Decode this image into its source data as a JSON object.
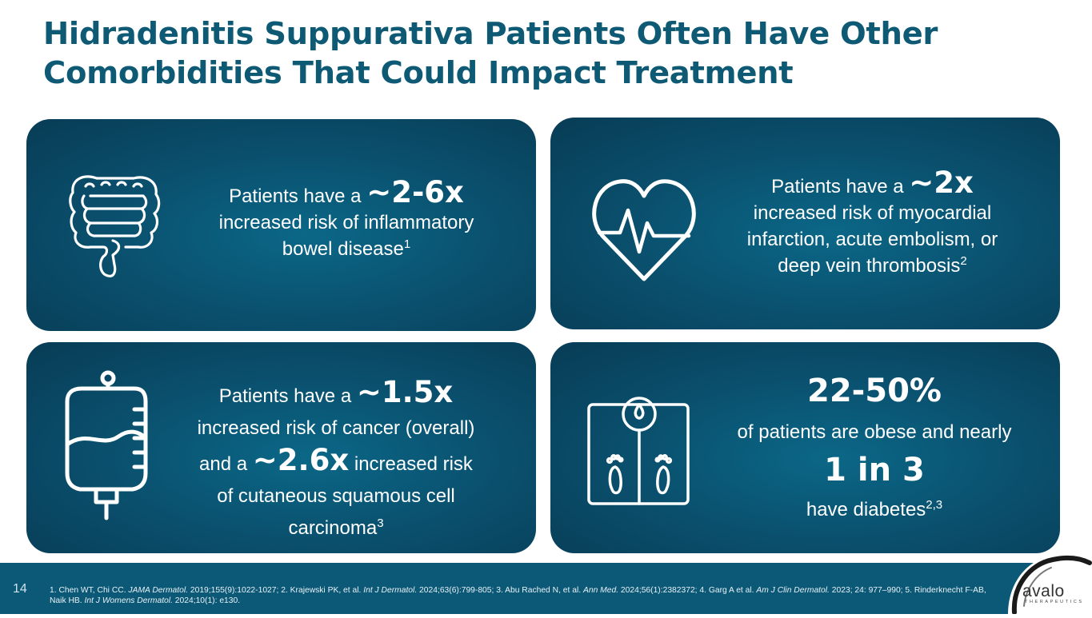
{
  "title": {
    "line1": "Hidradenitis Suppurativa Patients Often Have Other",
    "line2": "Comorbidities That Could Impact Treatment"
  },
  "cards": {
    "ibd": {
      "icon": "intestine-icon",
      "prefix": "Patients have a",
      "stat": "~2-6x",
      "line2": "increased risk of inflammatory",
      "line3": "bowel disease",
      "ref": "1"
    },
    "cardio": {
      "icon": "heart-pulse-icon",
      "prefix": "Patients have a",
      "stat": "~2x",
      "line2": "increased risk of myocardial",
      "line3": "infarction, acute embolism, or",
      "line4": "deep vein thrombosis",
      "ref": "2"
    },
    "cancer": {
      "icon": "iv-bag-icon",
      "prefix": "Patients have a",
      "stat1": "~1.5x",
      "line2": "increased risk of cancer (overall)",
      "and": "and a",
      "stat2": "~2.6x",
      "line3_suffix": "increased risk",
      "line4": "of cutaneous squamous cell",
      "line5": "carcinoma",
      "ref": "3"
    },
    "obesity": {
      "icon": "weight-scale-icon",
      "stat1": "22-50%",
      "line2": "of patients are obese and nearly",
      "stat2": "1 in 3",
      "line4": "have diabetes",
      "ref": "2,3"
    }
  },
  "footer": {
    "page_number": "14",
    "refs": {
      "r1a": "1. Chen WT, Chi CC. ",
      "r1j": "JAMA Dermatol.",
      "r1b": " 2019;155(9):1022-1027; 2. Krajewski PK, et al. ",
      "r2j": "Int J Dermatol.",
      "r2b": " 2024;63(6):799-805; 3. Abu Rached N, et al. ",
      "r3j": "Ann Med.",
      "r3b": " 2024;56(1):2382372; 4. Garg A et al. ",
      "r4j": "Am J Clin Dermatol.",
      "r4b": " 2023; 24: 977–990; 5. Rinderknecht F-AB, Naik HB. ",
      "r5j": "Int J Womens Dermatol.",
      "r5b": " 2024;10(1): e130."
    }
  },
  "logo": {
    "wordmark": "avalo",
    "tagline": "THERAPEUTICS"
  },
  "colors": {
    "title": "#0e5a75",
    "card": "#0a5270",
    "footer": "#0c5877"
  }
}
